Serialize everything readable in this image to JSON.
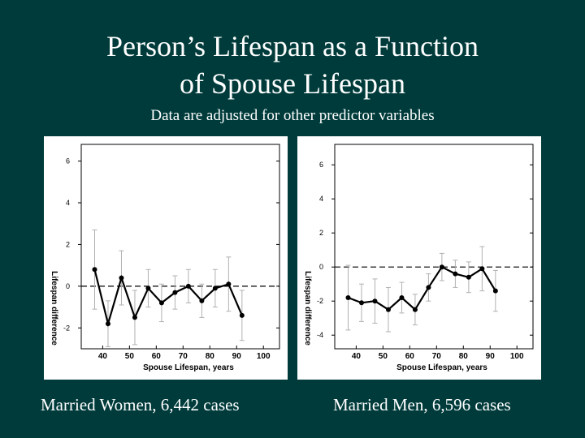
{
  "slide": {
    "title_line1": "Person’s Lifespan as  a  Function",
    "title_line2": "of  Spouse  Lifespan",
    "subtitle": "Data are adjusted for other predictor variables",
    "caption_left": "Married Women, 6,442 cases",
    "caption_right": "Married Men, 6,596 cases"
  },
  "colors": {
    "background": "#003b3b",
    "text": "#ffffff",
    "plot_bg": "#ffffff",
    "series": "#000000",
    "error_bar": "#b0b0b0"
  },
  "chart_data": [
    {
      "type": "line",
      "xlabel": "Spouse Lifespan, years",
      "ylabel": "Lifespan difference",
      "xlim": [
        32,
        106
      ],
      "ylim": [
        -3.0,
        6.8
      ],
      "xticks": [
        40,
        50,
        60,
        70,
        80,
        90,
        100
      ],
      "yticks": [
        -2,
        0,
        2,
        4,
        6
      ],
      "reference_line": 0,
      "series": [
        {
          "x": [
            37,
            42,
            47,
            52,
            57,
            62,
            67,
            72,
            77,
            82,
            87,
            92
          ],
          "y": [
            0.8,
            -1.8,
            0.4,
            -1.5,
            -0.1,
            -0.8,
            -0.3,
            0.0,
            -0.7,
            -0.1,
            0.1,
            -1.4
          ],
          "err": [
            1.9,
            1.1,
            1.3,
            1.3,
            0.9,
            0.9,
            0.8,
            0.8,
            0.8,
            0.9,
            1.3,
            1.2
          ]
        }
      ]
    },
    {
      "type": "line",
      "xlabel": "Spouse Lifespan, years",
      "ylabel": "Lifespan difference",
      "xlim": [
        32,
        106
      ],
      "ylim": [
        -4.8,
        7.2
      ],
      "xticks": [
        40,
        50,
        60,
        70,
        80,
        90,
        100
      ],
      "yticks": [
        -4,
        -2,
        0,
        2,
        4,
        6
      ],
      "reference_line": 0,
      "series": [
        {
          "x": [
            37,
            42,
            47,
            52,
            57,
            62,
            67,
            72,
            77,
            82,
            87,
            92
          ],
          "y": [
            -1.8,
            -2.1,
            -2.0,
            -2.5,
            -1.8,
            -2.5,
            -1.2,
            0.0,
            -0.4,
            -0.6,
            -0.1,
            -1.4
          ],
          "err": [
            1.9,
            1.1,
            1.3,
            1.3,
            0.9,
            0.9,
            0.8,
            0.8,
            0.8,
            0.9,
            1.3,
            1.2
          ]
        }
      ]
    }
  ]
}
